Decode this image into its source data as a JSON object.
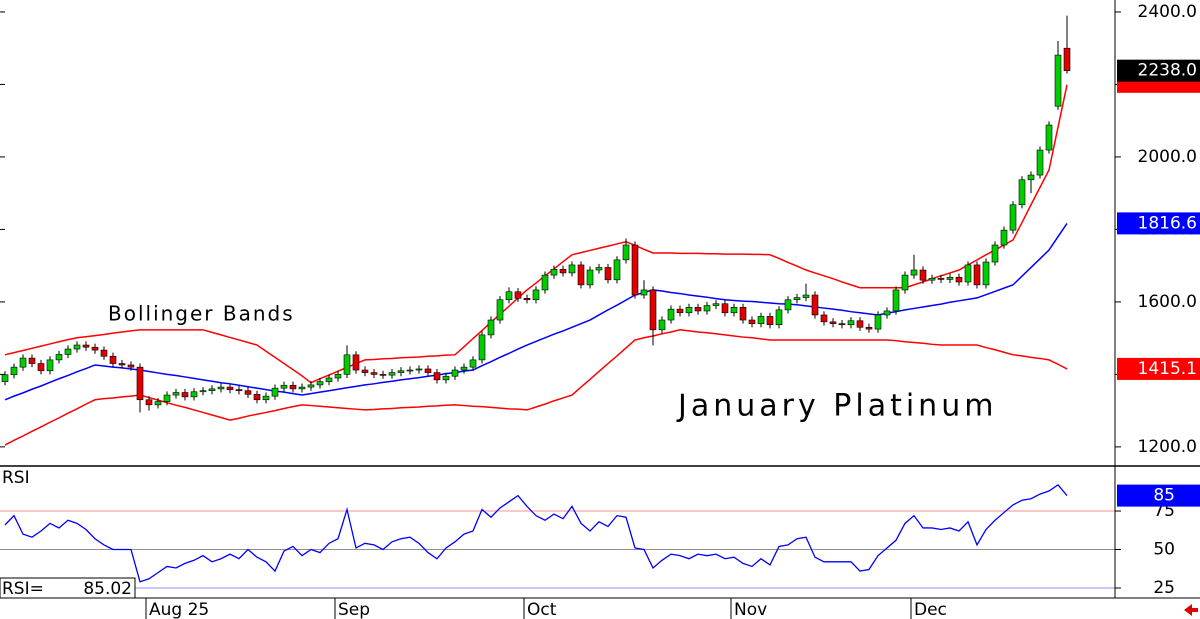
{
  "chart_data": [
    {
      "type": "candlestick",
      "annotations": [
        "Bollinger Bands",
        "January Platinum"
      ],
      "categories": [
        null,
        null,
        null,
        null,
        null,
        null,
        null,
        null,
        null,
        null,
        null,
        null,
        null,
        null,
        null,
        null,
        "Aug 25",
        null,
        null,
        null,
        null,
        null,
        null,
        null,
        null,
        null,
        null,
        null,
        null,
        null,
        null,
        null,
        null,
        null,
        null,
        null,
        null,
        "Sep",
        null,
        null,
        null,
        null,
        null,
        null,
        null,
        null,
        null,
        null,
        null,
        null,
        null,
        null,
        null,
        null,
        null,
        null,
        null,
        null,
        "Oct",
        null,
        null,
        null,
        null,
        null,
        null,
        null,
        null,
        null,
        null,
        null,
        null,
        null,
        null,
        null,
        null,
        null,
        null,
        null,
        null,
        null,
        null,
        "Nov",
        null,
        null,
        null,
        null,
        null,
        null,
        null,
        null,
        null,
        null,
        null,
        null,
        null,
        null,
        null,
        null,
        null,
        null,
        null,
        "Dec",
        null,
        null,
        null,
        null,
        null,
        null,
        null,
        null,
        null,
        null,
        null,
        null,
        null,
        null,
        null,
        null,
        null
      ],
      "open": [
        1380,
        1399,
        1420,
        1445,
        1430,
        1410,
        1440,
        1455,
        1470,
        1481,
        1475,
        1467,
        1450,
        1430,
        1426,
        1420,
        1330,
        1316,
        1325,
        1343,
        1350,
        1338,
        1352,
        1355,
        1360,
        1365,
        1358,
        1355,
        1345,
        1330,
        1340,
        1362,
        1370,
        1360,
        1365,
        1371,
        1380,
        1390,
        1400,
        1454,
        1412,
        1405,
        1400,
        1398,
        1405,
        1410,
        1412,
        1415,
        1405,
        1385,
        1395,
        1412,
        1420,
        1440,
        1509,
        1550,
        1606,
        1628,
        1610,
        1606,
        1633,
        1674,
        1690,
        1680,
        1702,
        1647,
        1688,
        1695,
        1661,
        1716,
        1757,
        1619,
        1633,
        1523,
        1550,
        1580,
        1570,
        1585,
        1575,
        1590,
        1595,
        1570,
        1585,
        1550,
        1540,
        1560,
        1537,
        1578,
        1606,
        1612,
        1619,
        1564,
        1545,
        1540,
        1537,
        1548,
        1530,
        1525,
        1564,
        1575,
        1633,
        1674,
        1688,
        1660,
        1665,
        1662,
        1668,
        1655,
        1702,
        1647,
        1710,
        1757,
        1798,
        1868,
        1937,
        1950,
        2019,
        2140,
        2300
      ],
      "high": [
        1409,
        1430,
        1455,
        1455,
        1440,
        1450,
        1465,
        1480,
        1491,
        1491,
        1485,
        1477,
        1460,
        1440,
        1436,
        1430,
        1340,
        1335,
        1353,
        1360,
        1360,
        1362,
        1365,
        1370,
        1375,
        1375,
        1368,
        1365,
        1355,
        1350,
        1372,
        1380,
        1380,
        1375,
        1381,
        1390,
        1400,
        1410,
        1480,
        1464,
        1422,
        1415,
        1410,
        1415,
        1420,
        1422,
        1425,
        1425,
        1415,
        1405,
        1422,
        1430,
        1450,
        1519,
        1560,
        1616,
        1640,
        1638,
        1620,
        1643,
        1684,
        1700,
        1700,
        1712,
        1712,
        1698,
        1705,
        1705,
        1726,
        1775,
        1767,
        1660,
        1643,
        1560,
        1590,
        1590,
        1595,
        1595,
        1600,
        1605,
        1605,
        1595,
        1595,
        1560,
        1570,
        1570,
        1588,
        1616,
        1622,
        1650,
        1629,
        1574,
        1555,
        1550,
        1558,
        1558,
        1540,
        1574,
        1585,
        1643,
        1684,
        1730,
        1698,
        1675,
        1675,
        1678,
        1678,
        1712,
        1712,
        1720,
        1767,
        1808,
        1878,
        1947,
        1960,
        2029,
        2098,
        2320,
        2390
      ],
      "low": [
        1370,
        1389,
        1410,
        1420,
        1400,
        1400,
        1430,
        1445,
        1460,
        1465,
        1457,
        1440,
        1420,
        1416,
        1410,
        1295,
        1300,
        1306,
        1315,
        1333,
        1328,
        1328,
        1342,
        1345,
        1350,
        1348,
        1345,
        1335,
        1320,
        1320,
        1330,
        1352,
        1350,
        1350,
        1355,
        1361,
        1370,
        1380,
        1390,
        1402,
        1395,
        1390,
        1388,
        1388,
        1395,
        1400,
        1402,
        1395,
        1375,
        1375,
        1385,
        1402,
        1410,
        1430,
        1499,
        1540,
        1596,
        1600,
        1596,
        1596,
        1623,
        1664,
        1670,
        1670,
        1637,
        1637,
        1678,
        1651,
        1651,
        1706,
        1609,
        1609,
        1480,
        1513,
        1540,
        1560,
        1560,
        1565,
        1565,
        1580,
        1560,
        1560,
        1540,
        1530,
        1530,
        1527,
        1527,
        1568,
        1596,
        1602,
        1554,
        1535,
        1530,
        1527,
        1527,
        1520,
        1515,
        1515,
        1554,
        1565,
        1623,
        1664,
        1650,
        1650,
        1652,
        1652,
        1645,
        1645,
        1637,
        1637,
        1700,
        1747,
        1788,
        1858,
        1900,
        1940,
        2009,
        2130,
        2230
      ],
      "close": [
        1399,
        1420,
        1445,
        1430,
        1410,
        1440,
        1455,
        1470,
        1481,
        1475,
        1467,
        1450,
        1430,
        1426,
        1420,
        1330,
        1316,
        1325,
        1343,
        1350,
        1338,
        1352,
        1355,
        1360,
        1365,
        1358,
        1355,
        1345,
        1330,
        1340,
        1362,
        1370,
        1360,
        1365,
        1371,
        1380,
        1390,
        1400,
        1454,
        1412,
        1405,
        1400,
        1398,
        1405,
        1410,
        1412,
        1415,
        1405,
        1385,
        1395,
        1412,
        1420,
        1440,
        1509,
        1550,
        1606,
        1628,
        1610,
        1606,
        1633,
        1674,
        1690,
        1680,
        1702,
        1647,
        1688,
        1695,
        1661,
        1716,
        1757,
        1619,
        1633,
        1523,
        1550,
        1580,
        1570,
        1585,
        1575,
        1590,
        1595,
        1570,
        1585,
        1550,
        1540,
        1560,
        1537,
        1578,
        1606,
        1612,
        1619,
        1564,
        1545,
        1540,
        1537,
        1548,
        1530,
        1525,
        1564,
        1575,
        1633,
        1674,
        1688,
        1660,
        1665,
        1662,
        1668,
        1655,
        1702,
        1647,
        1710,
        1757,
        1798,
        1868,
        1937,
        1950,
        2019,
        2088,
        2281,
        2238
      ],
      "last_close_label": "2238.0",
      "up_color": "#00cc00",
      "down_color": "#e00000",
      "bands": [
        {
          "color": "#ff0000",
          "values": [
            1454,
            1460,
            1466,
            1472,
            1478,
            1484,
            1490,
            1496,
            1501,
            1504,
            1507,
            1510,
            1514,
            1517,
            1520,
            1523,
            1523,
            1523,
            1523,
            1523,
            1523,
            1523,
            1523,
            1516,
            1509,
            1502,
            1495,
            1488,
            1481,
            1464,
            1447,
            1430,
            1413,
            1396,
            1377,
            1388,
            1398,
            1409,
            1419,
            1430,
            1440,
            1441,
            1443,
            1444,
            1446,
            1447,
            1448,
            1450,
            1451,
            1453,
            1454,
            1476,
            1499,
            1521,
            1544,
            1566,
            1588,
            1611,
            1633,
            1652,
            1672,
            1691,
            1711,
            1730,
            1736,
            1742,
            1748,
            1754,
            1760,
            1766,
            1756,
            1745,
            1735,
            1735,
            1735,
            1734,
            1734,
            1734,
            1733,
            1733,
            1732,
            1732,
            1732,
            1731,
            1731,
            1730,
            1720,
            1709,
            1699,
            1688,
            1680,
            1672,
            1664,
            1655,
            1647,
            1639,
            1639,
            1639,
            1639,
            1639,
            1639,
            1647,
            1655,
            1664,
            1672,
            1680,
            1688,
            1702,
            1716,
            1730,
            1743,
            1757,
            1771,
            1819,
            1868,
            1916,
            1964,
            2082,
            2199
          ]
        },
        {
          "color": "#0000ff",
          "values": [
            1330,
            1340,
            1349,
            1359,
            1368,
            1378,
            1388,
            1397,
            1407,
            1416,
            1426,
            1423,
            1420,
            1418,
            1415,
            1412,
            1408,
            1404,
            1400,
            1397,
            1393,
            1389,
            1385,
            1381,
            1377,
            1374,
            1370,
            1366,
            1362,
            1358,
            1354,
            1351,
            1347,
            1343,
            1347,
            1351,
            1355,
            1359,
            1363,
            1367,
            1371,
            1374,
            1378,
            1381,
            1385,
            1388,
            1391,
            1395,
            1398,
            1402,
            1405,
            1409,
            1412,
            1424,
            1435,
            1447,
            1458,
            1470,
            1481,
            1491,
            1501,
            1511,
            1520,
            1530,
            1540,
            1550,
            1564,
            1578,
            1591,
            1605,
            1619,
            1626,
            1633,
            1630,
            1626,
            1623,
            1619,
            1616,
            1613,
            1609,
            1606,
            1604,
            1602,
            1601,
            1599,
            1597,
            1595,
            1594,
            1592,
            1589,
            1586,
            1583,
            1580,
            1577,
            1573,
            1570,
            1567,
            1564,
            1569,
            1573,
            1578,
            1582,
            1586,
            1590,
            1594,
            1599,
            1603,
            1607,
            1611,
            1620,
            1629,
            1638,
            1647,
            1671,
            1695,
            1719,
            1743,
            1780,
            1816.6
          ]
        },
        {
          "color": "#ff0000",
          "values": [
            1205,
            1218,
            1230,
            1243,
            1255,
            1268,
            1280,
            1293,
            1305,
            1318,
            1330,
            1333,
            1335,
            1338,
            1340,
            1343,
            1336,
            1329,
            1322,
            1315,
            1309,
            1302,
            1295,
            1288,
            1281,
            1274,
            1279,
            1285,
            1290,
            1295,
            1300,
            1306,
            1311,
            1316,
            1314,
            1312,
            1310,
            1308,
            1306,
            1304,
            1302,
            1303,
            1305,
            1306,
            1308,
            1309,
            1310,
            1312,
            1313,
            1315,
            1316,
            1314,
            1312,
            1311,
            1309,
            1307,
            1305,
            1304,
            1302,
            1310,
            1318,
            1327,
            1335,
            1343,
            1365,
            1386,
            1408,
            1430,
            1451,
            1473,
            1495,
            1501,
            1506,
            1512,
            1517,
            1523,
            1520,
            1517,
            1515,
            1512,
            1509,
            1506,
            1503,
            1501,
            1498,
            1495,
            1495,
            1495,
            1495,
            1495,
            1495,
            1495,
            1495,
            1495,
            1495,
            1495,
            1495,
            1495,
            1495,
            1493,
            1490,
            1488,
            1486,
            1483,
            1481,
            1481,
            1481,
            1481,
            1481,
            1474,
            1468,
            1461,
            1454,
            1451,
            1447,
            1444,
            1440,
            1428,
            1415.1
          ]
        }
      ],
      "ylim": [
        1150,
        2433
      ],
      "yticks": [
        {
          "value": 1200,
          "label": "1200.0"
        },
        {
          "value": 1400,
          "label": "1400.0"
        },
        {
          "value": 1600,
          "label": "1600.0"
        },
        {
          "value": 1800,
          "label": "1800.0"
        },
        {
          "value": 2000,
          "label": "2000.0"
        },
        {
          "value": 2200,
          "label": "2200.0"
        },
        {
          "value": 2400,
          "label": "2400.0"
        }
      ]
    },
    {
      "type": "line",
      "title": "RSI",
      "readout_label": "RSI=",
      "values": [
        66,
        72,
        60,
        58,
        62,
        67,
        64,
        69,
        67,
        63,
        57,
        53,
        50,
        50,
        50,
        29,
        31,
        35,
        39,
        38,
        41,
        43,
        46,
        42,
        44,
        47,
        44,
        50,
        45,
        42,
        36,
        49,
        52,
        46,
        50,
        48,
        54,
        57,
        76,
        51,
        54,
        53,
        50,
        55,
        57,
        58,
        54,
        48,
        44,
        51,
        55,
        60,
        62,
        76,
        71,
        77,
        81,
        85,
        78,
        72,
        69,
        73,
        70,
        78,
        67,
        62,
        68,
        65,
        72,
        71,
        51,
        50,
        38,
        43,
        47,
        46,
        44,
        47,
        46,
        47,
        44,
        45,
        41,
        39,
        44,
        40,
        52,
        53,
        57,
        58,
        45,
        42,
        42,
        42,
        42,
        36,
        37,
        46,
        51,
        56,
        67,
        72,
        64,
        64,
        63,
        64,
        62,
        68,
        53,
        63,
        69,
        74,
        79,
        82,
        83,
        86,
        88,
        92,
        85.02
      ],
      "marker_label": "85",
      "color": "#0000ff",
      "ylim": [
        18.5,
        103.6
      ],
      "yticks": [
        25,
        50,
        75
      ],
      "reference_lines": [
        {
          "value": 75,
          "color": "#ff9090"
        },
        {
          "value": 50,
          "color": "#909090"
        },
        {
          "value": 25,
          "color": "#9090ff"
        }
      ]
    }
  ]
}
